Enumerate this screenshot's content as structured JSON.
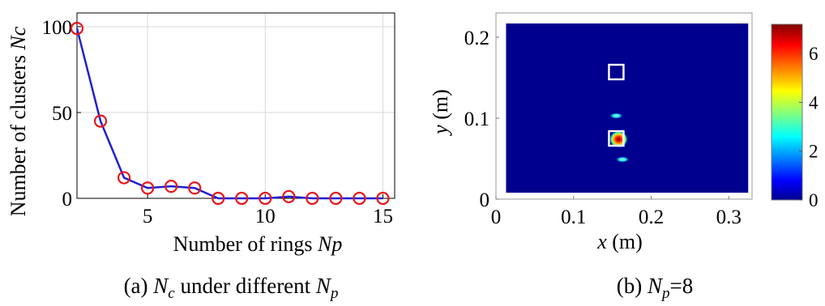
{
  "panel_a": {
    "ylabel_prefix": "Number of clusters ",
    "ylabel_var": "Nc",
    "xlabel_prefix": "Number of rings ",
    "xlabel_var": "Np",
    "caption_prefix": "(a)  ",
    "caption_var1": "N",
    "caption_var1_sub": "c",
    "caption_mid": "  under different  ",
    "caption_var2": "N",
    "caption_var2_sub": "p"
  },
  "panel_b": {
    "xlabel_var": "x",
    "xlabel_unit": " (m)",
    "ylabel_var": "y",
    "ylabel_unit": " (m)",
    "caption_prefix": "(b)  ",
    "caption_var": "N",
    "caption_var_sub": "p",
    "caption_value": "=8"
  },
  "chart_data": [
    {
      "type": "line",
      "x": [
        2,
        3,
        4,
        5,
        6,
        7,
        8,
        9,
        10,
        11,
        12,
        13,
        14,
        15
      ],
      "series": [
        {
          "values": [
            99,
            45,
            12,
            6,
            7,
            6,
            0,
            0,
            0,
            1,
            0,
            0,
            0,
            0
          ]
        }
      ],
      "xlim": [
        2,
        15.5
      ],
      "ylim": [
        0,
        100
      ],
      "xticks": [
        5,
        10,
        15
      ],
      "yticks": [
        0,
        50,
        100
      ],
      "grid": true,
      "line_color": "#1f1fd6",
      "marker_color": "#e8161b",
      "marker": "circle-open"
    },
    {
      "type": "heatmap",
      "xlim": [
        0,
        0.33
      ],
      "ylim": [
        0,
        0.23
      ],
      "xticks": [
        0,
        0.1,
        0.2,
        0.3
      ],
      "xtick_labels": [
        "0",
        "0.1",
        "0.2",
        "0.3"
      ],
      "yticks": [
        0,
        0.1,
        0.2
      ],
      "ytick_labels": [
        "0",
        "0.1",
        "0.2"
      ],
      "field_extent": {
        "x": [
          0.013,
          0.325
        ],
        "y": [
          0.008,
          0.217
        ]
      },
      "background_value": 0,
      "hotspots": [
        {
          "x": 0.158,
          "y": 0.074,
          "value": 7
        },
        {
          "x": 0.163,
          "y": 0.049,
          "value": 2.2
        },
        {
          "x": 0.155,
          "y": 0.103,
          "value": 1.8
        }
      ],
      "markers": [
        {
          "shape": "square",
          "x": 0.155,
          "y": 0.157
        },
        {
          "shape": "square",
          "x": 0.155,
          "y": 0.075
        }
      ],
      "colorbar": {
        "min": 0,
        "max": 7.2,
        "ticks": [
          0,
          2,
          4,
          6
        ],
        "colormap": "jet"
      }
    }
  ]
}
